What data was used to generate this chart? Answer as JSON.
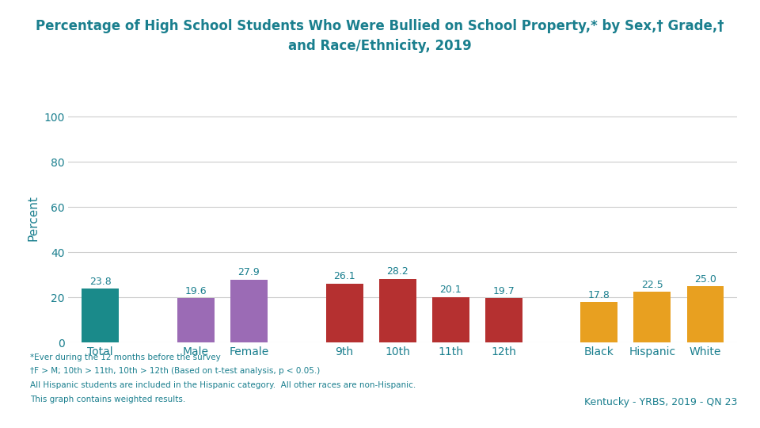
{
  "title_line1": "Percentage of High School Students Who Were Bullied on School Property,* by Sex,† Grade,†",
  "title_line2": "and Race/Ethnicity, 2019",
  "title_color": "#1a7f8e",
  "display_categories": [
    "Total",
    "Male",
    "Female",
    "9th",
    "10th",
    "11th",
    "12th",
    "Black",
    "Hispanic",
    "White"
  ],
  "values": [
    23.8,
    19.6,
    27.9,
    26.1,
    28.2,
    20.1,
    19.7,
    17.8,
    22.5,
    25.0
  ],
  "bar_colors": [
    "#1a8a8a",
    "#9b6bb5",
    "#9b6bb5",
    "#b53030",
    "#b53030",
    "#b53030",
    "#b53030",
    "#e8a020",
    "#e8a020",
    "#e8a020"
  ],
  "gaps": [
    0,
    1,
    0,
    1,
    0,
    0,
    0,
    1,
    0,
    0
  ],
  "ylabel": "Percent",
  "ylim": [
    0,
    110
  ],
  "yticks": [
    0,
    20,
    40,
    60,
    80,
    100
  ],
  "tick_color": "#1a7f8e",
  "grid_color": "#cccccc",
  "footnote_lines": [
    "*Ever during the 12 months before the survey",
    "†F > M; 10th > 11th, 10th > 12th (Based on t-test analysis, p < 0.05.)",
    "All Hispanic students are included in the Hispanic category.  All other races are non-Hispanic.",
    "This graph contains weighted results."
  ],
  "footnote_color": "#1a7f8e",
  "credit_text": "Kentucky - YRBS, 2019 - QN 23",
  "credit_color": "#1a7f8e",
  "footer_colors": [
    "#1a8a8a",
    "#9b6bb5",
    "#b53030",
    "#aaccdd",
    "#e8a020",
    "#1a3a6a"
  ],
  "footer_widths": [
    0.5,
    0.07,
    0.14,
    0.065,
    0.125,
    0.1
  ],
  "background_color": "#ffffff",
  "bar_width": 0.7,
  "label_fontsize": 9,
  "axis_fontsize": 10,
  "ylabel_fontsize": 11,
  "title_fontsize": 12,
  "footnote_fontsize": 7.5,
  "credit_fontsize": 9
}
